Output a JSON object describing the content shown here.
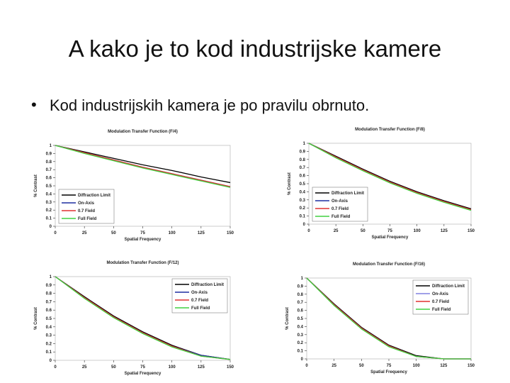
{
  "title": "A kako je to kod industrijske kamere",
  "bullet": "Kod industrijskih kamera je po pravilu obrnuto.",
  "chart_data": [
    {
      "type": "line",
      "title": "Modulation Transfer Function (F/4)",
      "xlabel": "Spatial Frequency",
      "ylabel": "% Contrast",
      "x": [
        0,
        25,
        50,
        75,
        100,
        125,
        150
      ],
      "xlim": [
        0,
        150
      ],
      "xticks": [
        0,
        25,
        50,
        75,
        100,
        125,
        150
      ],
      "ylim": [
        0,
        1
      ],
      "yticks": [
        0,
        0.1,
        0.2,
        0.3,
        0.4,
        0.5,
        0.6,
        0.7,
        0.8,
        0.9,
        1
      ],
      "legend": "lower left",
      "series": [
        {
          "name": "Diffraction Limit",
          "color": "#000000",
          "values": [
            1,
            0.92,
            0.84,
            0.76,
            0.69,
            0.61,
            0.54
          ]
        },
        {
          "name": "On-Axis",
          "color": "#1f2fa0",
          "values": [
            1,
            0.91,
            0.82,
            0.73,
            0.65,
            0.57,
            0.49
          ]
        },
        {
          "name": "0.7 Field",
          "color": "#e03030",
          "values": [
            1,
            0.91,
            0.82,
            0.73,
            0.65,
            0.57,
            0.49
          ]
        },
        {
          "name": "Full Field",
          "color": "#40d040",
          "values": [
            1,
            0.9,
            0.81,
            0.72,
            0.64,
            0.56,
            0.48
          ]
        }
      ]
    },
    {
      "type": "line",
      "title": "Modulation Transfer Function (F/8)",
      "xlabel": "Spatial Frequency",
      "ylabel": "% Contrast",
      "x": [
        0,
        25,
        50,
        75,
        100,
        125,
        150
      ],
      "xlim": [
        0,
        150
      ],
      "xticks": [
        0,
        25,
        50,
        75,
        100,
        125,
        150
      ],
      "ylim": [
        0,
        1
      ],
      "yticks": [
        0,
        0.1,
        0.2,
        0.3,
        0.4,
        0.5,
        0.6,
        0.7,
        0.8,
        0.9,
        1
      ],
      "legend": "lower left",
      "series": [
        {
          "name": "Diffraction Limit",
          "color": "#000000",
          "values": [
            1,
            0.84,
            0.68,
            0.53,
            0.4,
            0.29,
            0.19
          ]
        },
        {
          "name": "On-Axis",
          "color": "#1f2fa0",
          "values": [
            1,
            0.83,
            0.67,
            0.52,
            0.39,
            0.28,
            0.18
          ]
        },
        {
          "name": "0.7 Field",
          "color": "#e03030",
          "values": [
            1,
            0.83,
            0.67,
            0.52,
            0.39,
            0.28,
            0.18
          ]
        },
        {
          "name": "Full Field",
          "color": "#40d040",
          "values": [
            1,
            0.82,
            0.66,
            0.51,
            0.38,
            0.27,
            0.17
          ]
        }
      ]
    },
    {
      "type": "line",
      "title": "Modulation Transfer Function (F/12)",
      "xlabel": "Spatial Frequency",
      "ylabel": "% Contrast",
      "x": [
        0,
        25,
        50,
        75,
        100,
        125,
        150
      ],
      "xlim": [
        0,
        150
      ],
      "xticks": [
        0,
        25,
        50,
        75,
        100,
        125,
        150
      ],
      "ylim": [
        0,
        1
      ],
      "yticks": [
        0,
        0.1,
        0.2,
        0.3,
        0.4,
        0.5,
        0.6,
        0.7,
        0.8,
        0.9,
        1
      ],
      "legend": "upper right",
      "series": [
        {
          "name": "Diffraction Limit",
          "color": "#000000",
          "values": [
            1,
            0.76,
            0.53,
            0.34,
            0.18,
            0.06,
            0.01
          ]
        },
        {
          "name": "On-Axis",
          "color": "#1f2fa0",
          "values": [
            1,
            0.75,
            0.52,
            0.33,
            0.17,
            0.06,
            0.01
          ]
        },
        {
          "name": "0.7 Field",
          "color": "#e03030",
          "values": [
            1,
            0.75,
            0.52,
            0.33,
            0.17,
            0.05,
            0.01
          ]
        },
        {
          "name": "Full Field",
          "color": "#40d040",
          "values": [
            1,
            0.74,
            0.51,
            0.32,
            0.16,
            0.05,
            0.01
          ]
        }
      ]
    },
    {
      "type": "line",
      "title": "Modulation Transfer Function (F/16)",
      "xlabel": "Spatial Frequency",
      "ylabel": "% Contrast",
      "x": [
        0,
        25,
        50,
        75,
        100,
        125,
        150
      ],
      "xlim": [
        0,
        150
      ],
      "xticks": [
        0,
        25,
        50,
        75,
        100,
        125,
        150
      ],
      "ylim": [
        0,
        1
      ],
      "yticks": [
        0,
        0.1,
        0.2,
        0.3,
        0.4,
        0.5,
        0.6,
        0.7,
        0.8,
        0.9,
        1
      ],
      "legend": "upper right",
      "series": [
        {
          "name": "Diffraction Limit",
          "color": "#000000",
          "values": [
            1,
            0.68,
            0.39,
            0.17,
            0.04,
            0,
            0
          ]
        },
        {
          "name": "On-Axis",
          "color": "#8080e0",
          "values": [
            1,
            0.67,
            0.38,
            0.16,
            0.03,
            0,
            0
          ]
        },
        {
          "name": "0.7 Field",
          "color": "#e03030",
          "values": [
            1,
            0.67,
            0.38,
            0.16,
            0.03,
            0,
            0
          ]
        },
        {
          "name": "Full Field",
          "color": "#40d040",
          "values": [
            1,
            0.66,
            0.37,
            0.15,
            0.03,
            0,
            0
          ]
        }
      ]
    }
  ]
}
